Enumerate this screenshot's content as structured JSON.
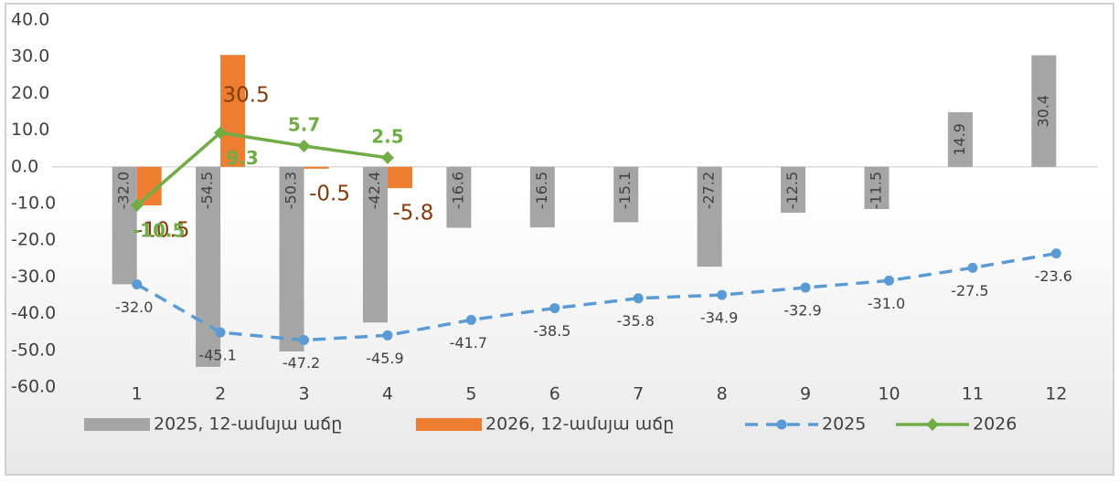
{
  "chart_data": {
    "type": "combo",
    "categories": [
      "1",
      "2",
      "3",
      "4",
      "5",
      "6",
      "7",
      "8",
      "9",
      "10",
      "11",
      "12"
    ],
    "ylim": [
      -60,
      40
    ],
    "yticks": [
      {
        "value": -60,
        "label": "-60.0"
      },
      {
        "value": -50,
        "label": "-50.0"
      },
      {
        "value": -40,
        "label": "-40.0"
      },
      {
        "value": -30,
        "label": "-30.0"
      },
      {
        "value": -20,
        "label": "-20.0"
      },
      {
        "value": -10,
        "label": "-10.0"
      },
      {
        "value": 0,
        "label": "0.0"
      },
      {
        "value": 10,
        "label": "10.0"
      },
      {
        "value": 20,
        "label": "20.0"
      },
      {
        "value": 30,
        "label": "30.0"
      },
      {
        "value": 40,
        "label": "40.0"
      }
    ],
    "legend": "bottom",
    "series": [
      {
        "name": "2025, 12-ամսյա աճը",
        "type": "bar",
        "color": "#a5a5a5",
        "values": [
          -32.0,
          -54.5,
          -50.3,
          -42.4,
          -16.6,
          -16.5,
          -15.1,
          -27.2,
          -12.5,
          -11.5,
          14.9,
          30.4
        ],
        "value_labels": [
          "-32.0",
          "-54.5",
          "-50.3",
          "-42.4",
          "-16.6",
          "-16.5",
          "-15.1",
          "-27.2",
          "-12.5",
          "-11.5",
          "14.9",
          "30.4"
        ]
      },
      {
        "name": "2026, 12-ամսյա աճը",
        "type": "bar",
        "color": "#ed7d31",
        "values": [
          -10.5,
          30.5,
          -0.5,
          -5.8,
          null,
          null,
          null,
          null,
          null,
          null,
          null,
          null
        ],
        "value_labels": [
          "-10.5",
          "30.5",
          "-0.5",
          "-5.8",
          null,
          null,
          null,
          null,
          null,
          null,
          null,
          null
        ]
      },
      {
        "name": "2025",
        "type": "line",
        "color": "#5b9bd5",
        "dashed": true,
        "marker": "circle",
        "values": [
          -32.0,
          -45.1,
          -47.2,
          -45.9,
          -41.7,
          -38.5,
          -35.8,
          -34.9,
          -32.9,
          -31.0,
          -27.5,
          -23.6
        ],
        "value_labels": [
          "-32.0",
          "-45.1",
          "-47.2",
          "-45.9",
          "-41.7",
          "-38.5",
          "-35.8",
          "-34.9",
          "-32.9",
          "-31.0",
          "-27.5",
          "-23.6"
        ]
      },
      {
        "name": "2026",
        "type": "line",
        "color": "#70ad47",
        "dashed": false,
        "marker": "diamond",
        "values": [
          -10.5,
          9.3,
          5.7,
          2.5,
          null,
          null,
          null,
          null,
          null,
          null,
          null,
          null
        ],
        "value_labels": [
          "-10.5",
          "9.3",
          "5.7",
          "2.5",
          null,
          null,
          null,
          null,
          null,
          null,
          null,
          null
        ]
      }
    ]
  }
}
